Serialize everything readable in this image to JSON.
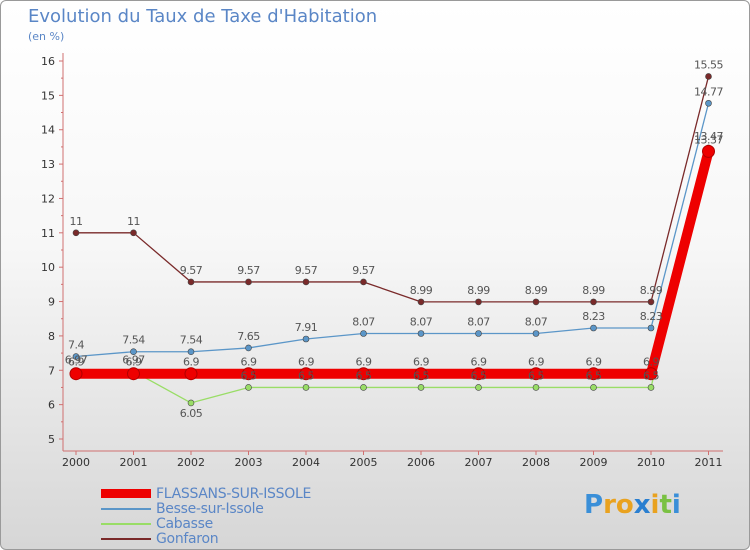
{
  "title": "Evolution du Taux de Taxe d'Habitation",
  "unit_label": "(en %)",
  "logo_text": "Proxiti",
  "chart_data": {
    "type": "line",
    "title": "Evolution du Taux de Taxe d'Habitation",
    "ylabel": "(en %)",
    "xlabel": "",
    "categories": [
      "2000",
      "2001",
      "2002",
      "2003",
      "2004",
      "2005",
      "2006",
      "2007",
      "2008",
      "2009",
      "2010",
      "2011"
    ],
    "y_ticks": [
      "5",
      "6",
      "7",
      "8",
      "9",
      "10",
      "11",
      "12",
      "13",
      "14",
      "15",
      "16"
    ],
    "ylim": [
      5,
      16
    ],
    "grid": false,
    "legend_position": "bottom-left",
    "series": [
      {
        "name": "FLASSANS-SUR-ISSOLE",
        "color": "#ee0000",
        "values": [
          6.9,
          6.9,
          6.9,
          6.9,
          6.9,
          6.9,
          6.9,
          6.9,
          6.9,
          6.9,
          6.9,
          13.37
        ],
        "labels": [
          "6.9",
          "6.9",
          "6.9",
          "6.9",
          "6.9",
          "6.9",
          "6.9",
          "6.9",
          "6.9",
          "6.9",
          "6.9",
          "13.37"
        ]
      },
      {
        "name": "Besse-sur-Issole",
        "color": "#5b96c8",
        "values": [
          7.4,
          7.54,
          7.54,
          7.65,
          7.91,
          8.07,
          8.07,
          8.07,
          8.07,
          8.23,
          8.23,
          14.77
        ],
        "labels": [
          "7.4",
          "7.54",
          "7.54",
          "7.65",
          "7.91",
          "8.07",
          "8.07",
          "8.07",
          "8.07",
          "8.23",
          "8.23",
          "14.77"
        ]
      },
      {
        "name": "Cabasse",
        "color": "#99dd66",
        "values": [
          6.97,
          6.97,
          6.05,
          6.5,
          6.5,
          6.5,
          6.5,
          6.5,
          6.5,
          6.5,
          6.5,
          13.47
        ],
        "labels": [
          "6.97",
          "6.97",
          "6.05",
          "6.5",
          "6.5",
          "6.5",
          "6.5",
          "6.5",
          "6.5",
          "6.5",
          "6.5",
          "13.47"
        ]
      },
      {
        "name": "Gonfaron",
        "color": "#7a2a2a",
        "values": [
          11,
          11,
          9.57,
          9.57,
          9.57,
          9.57,
          8.99,
          8.99,
          8.99,
          8.99,
          8.99,
          15.55
        ],
        "labels": [
          "11",
          "11",
          "9.57",
          "9.57",
          "9.57",
          "9.57",
          "8.99",
          "8.99",
          "8.99",
          "8.99",
          "8.99",
          "15.55"
        ]
      }
    ]
  }
}
